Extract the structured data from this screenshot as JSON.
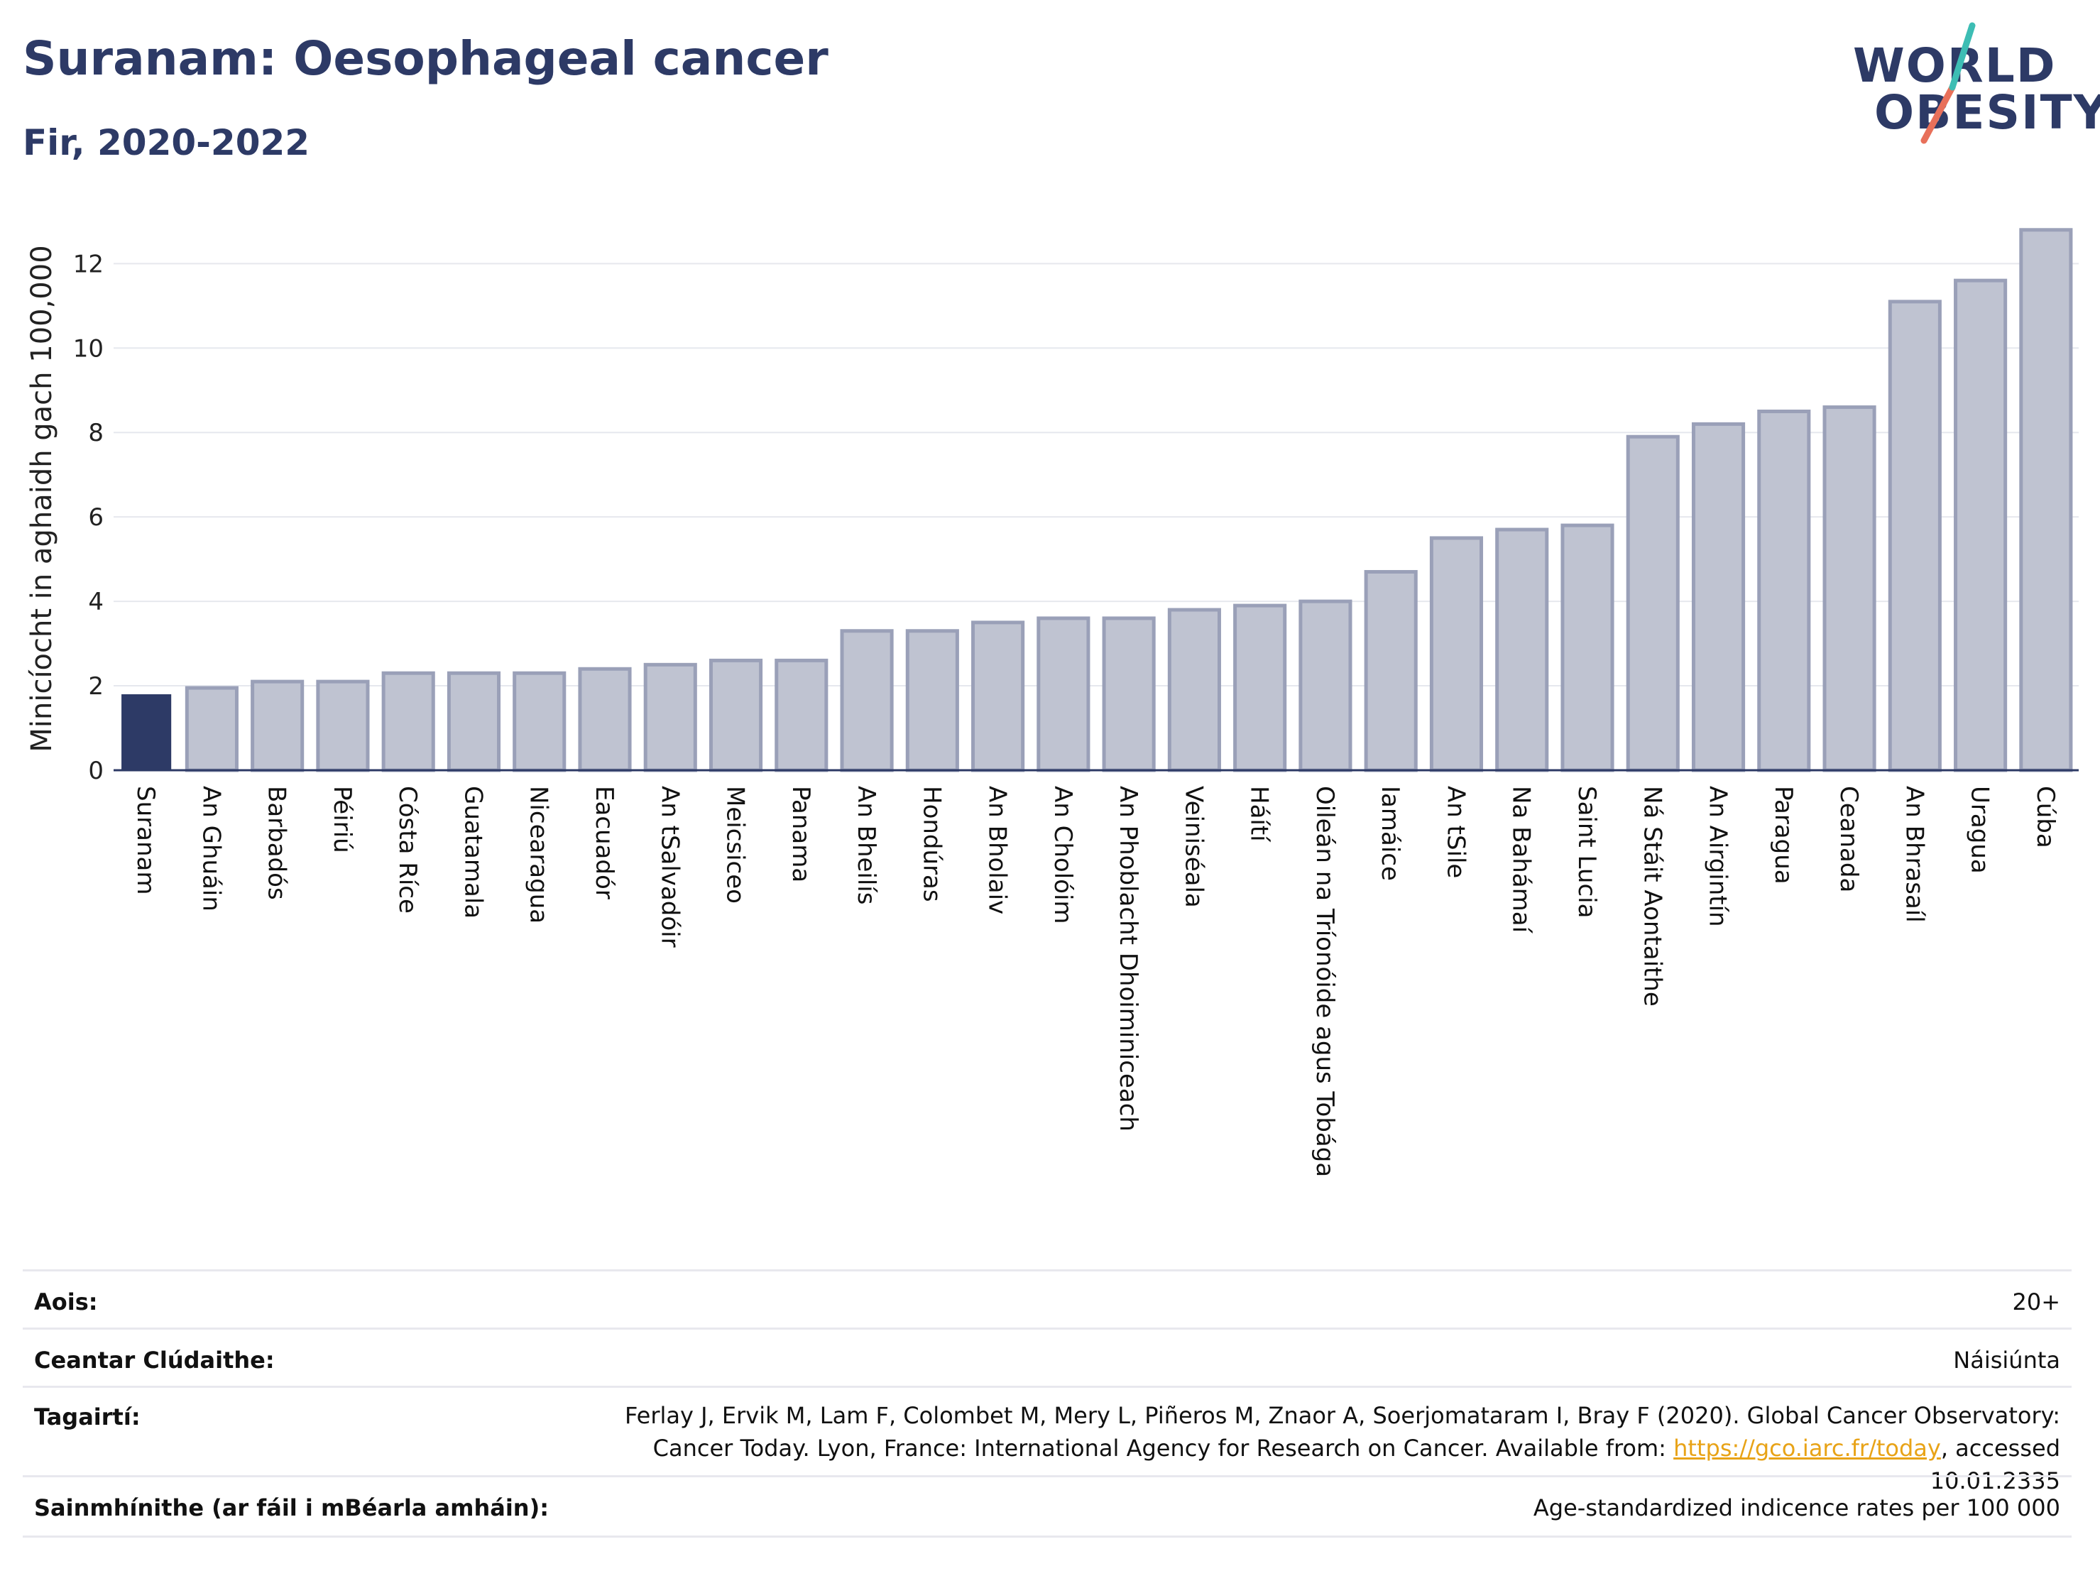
{
  "title": "Suranam: Oesophageal cancer",
  "subtitle": "Fir, 2020-2022",
  "logo": {
    "line1": "WORLD",
    "line2": "OBESITY"
  },
  "colors": {
    "highlight": "#2d3a66",
    "bar": "#bfc3d1",
    "bar_border": "#9aa0b8",
    "title": "#2d3a66",
    "accent_teal": "#3dbdb4",
    "accent_red": "#e8705a",
    "link": "#e8a317"
  },
  "chart_data": {
    "type": "bar",
    "title": "Suranam: Oesophageal cancer",
    "subtitle": "Fir, 2020-2022",
    "ylabel": "Minicíocht in aghaidh gach 100,000",
    "xlabel": "",
    "ylim": [
      0,
      13.2
    ],
    "yticks": [
      0,
      2,
      4,
      6,
      8,
      10,
      12
    ],
    "grid": true,
    "highlight_category": "Suranam",
    "categories": [
      "Suranam",
      "An Ghuáin",
      "Barbadós",
      "Péiriú",
      "Cósta Ríce",
      "Guatamala",
      "Nicearagua",
      "Eacuadór",
      "An tSalvadóir",
      "Meicsiceo",
      "Panama",
      "An Bheilís",
      "Hondúras",
      "An Bholaiv",
      "An Cholóim",
      "An Phoblacht Dhoiminiceach",
      "Veiniséala",
      "Háítí",
      "Oileán na Tríonóide agus Tobága",
      "Iamáice",
      "An tSile",
      "Na Bahámaí",
      "Saint Lucia",
      "Ná Stáit Aontaithe",
      "An Airgintín",
      "Paragua",
      "Ceanada",
      "An Bhrasaíl",
      "Uragua",
      "Cúba"
    ],
    "values": [
      1.8,
      1.95,
      2.1,
      2.1,
      2.3,
      2.3,
      2.3,
      2.4,
      2.5,
      2.6,
      2.6,
      3.3,
      3.3,
      3.5,
      3.6,
      3.6,
      3.8,
      3.9,
      4.0,
      4.7,
      5.5,
      5.7,
      5.8,
      7.9,
      8.2,
      8.5,
      8.6,
      11.1,
      11.6,
      12.8
    ]
  },
  "meta": {
    "age_label": "Aois:",
    "age_value": "20+",
    "coverage_label": "Ceantar Clúdaithe:",
    "coverage_value": "Náisiúnta",
    "refs_label": "Tagairtí:",
    "refs_text": "Ferlay J, Ervik M, Lam F, Colombet M, Mery L, Piñeros M, Znaor A, Soerjomataram I, Bray F (2020). Global Cancer Observatory: Cancer Today. Lyon, France: International Agency for Research on Cancer. Available from: ",
    "refs_link": "https://gco.iarc.fr/today",
    "refs_suffix": ", accessed 10.01.2335",
    "defs_label": "Sainmhínithe (ar fáil i mBéarla amháin):",
    "defs_value": "Age-standardized indicence rates per 100 000"
  }
}
